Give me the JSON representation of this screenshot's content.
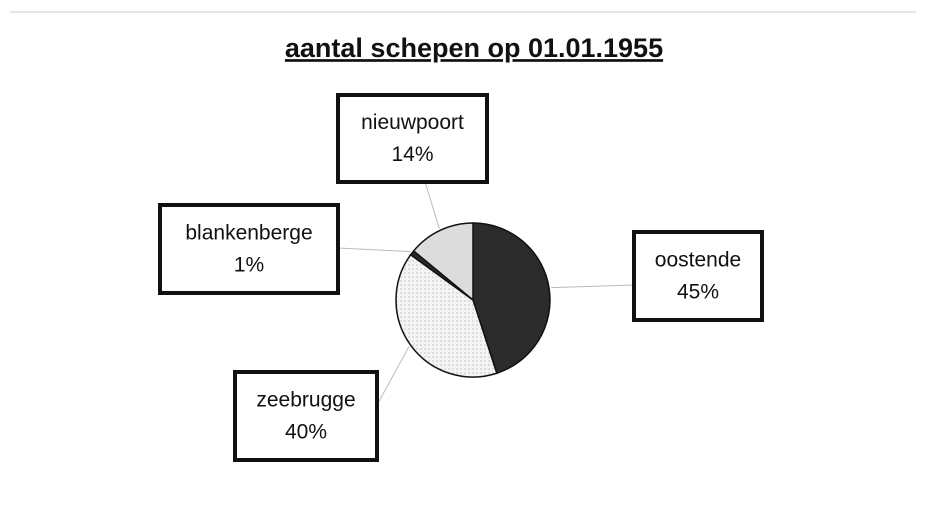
{
  "chart_data": {
    "type": "pie",
    "title": "aantal schepen op 01.01.1955",
    "categories": [
      "oostende",
      "zeebrugge",
      "blankenberge",
      "nieuwpoort"
    ],
    "values": [
      45,
      40,
      1,
      14
    ],
    "value_labels": [
      "45%",
      "40%",
      "1%",
      "14%"
    ],
    "colors": [
      "#2b2b2b",
      "#f1f1f1",
      "#2b2b2b",
      "#dcdcdc"
    ]
  }
}
